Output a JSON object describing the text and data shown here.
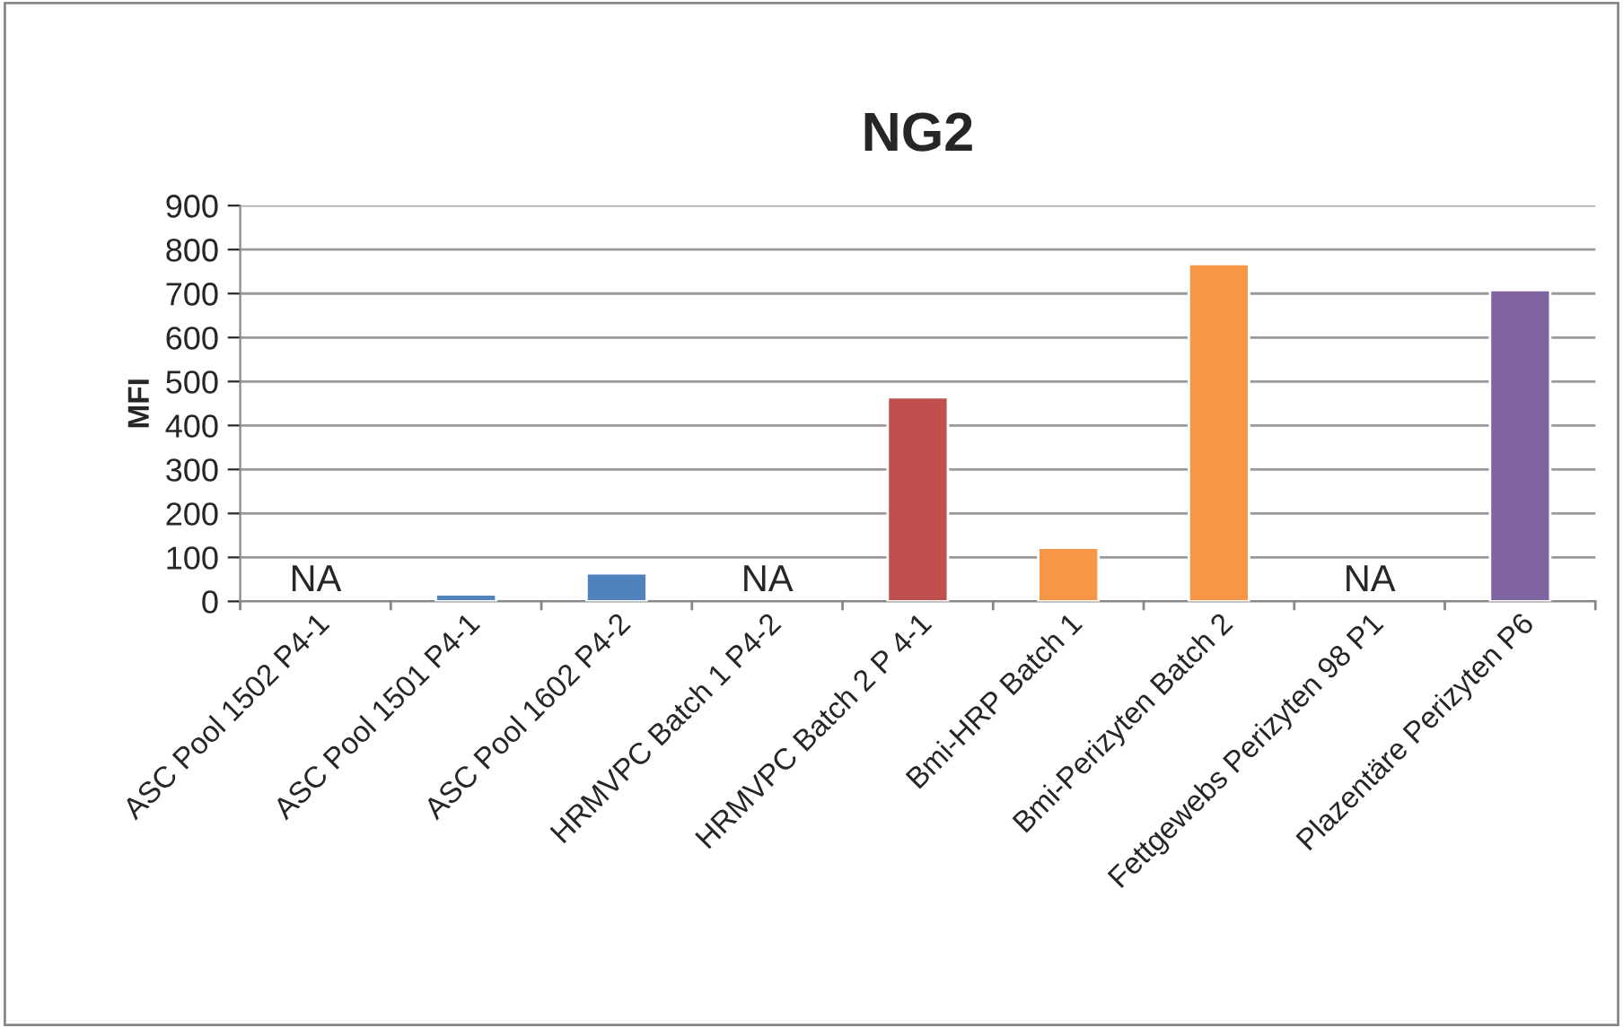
{
  "chart_data": {
    "type": "bar",
    "title": "NG2",
    "ylabel": "MFI",
    "categories": [
      "ASC Pool 1502 P4-1",
      "ASC Pool 1501 P4-1",
      "ASC Pool 1602 P4-2",
      "HRMVPC Batch 1 P4-2",
      "HRMVPC Batch 2 P 4-1",
      "Bmi-HRP Batch 1",
      "Bmi-Perizyten Batch 2",
      "Fettgewebs Perizyten 98 P1",
      "Plazentäre Perizyten P6"
    ],
    "values": [
      null,
      16,
      64,
      null,
      464,
      122,
      767,
      null,
      708
    ],
    "colors": [
      "#4f81bd",
      "#4f81bd",
      "#4f81bd",
      "#c0504d",
      "#c0504d",
      "#f79646",
      "#f79646",
      "#8064a2",
      "#8064a2"
    ],
    "ylim": [
      0,
      900
    ],
    "yticks": [
      0,
      100,
      200,
      300,
      400,
      500,
      600,
      700,
      800,
      900
    ],
    "grid": "y",
    "legend": false,
    "annotations": [
      "NA",
      "NA",
      "NA"
    ]
  }
}
